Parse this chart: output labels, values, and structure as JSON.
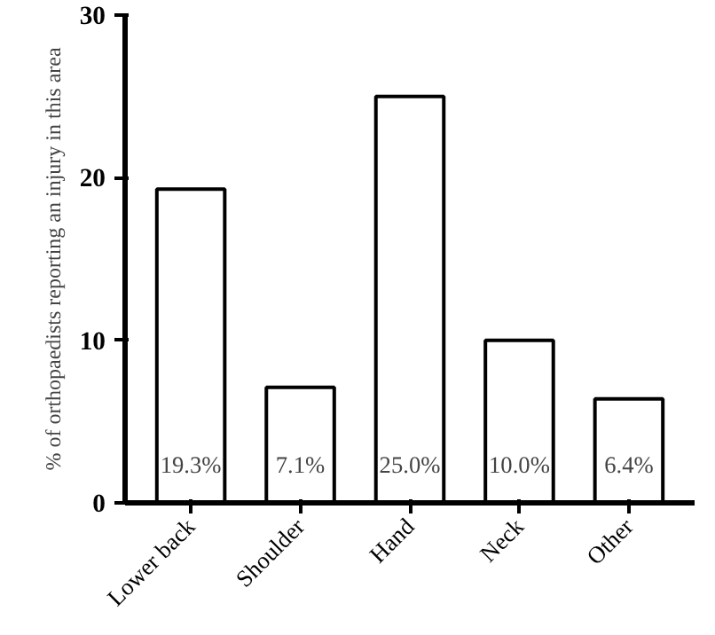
{
  "chart_data": {
    "type": "bar",
    "ylabel": "% of orthopaedists reporting an injury in this area",
    "categories": [
      "Lower back",
      "Shoulder",
      "Hand",
      "Neck",
      "Other"
    ],
    "values": [
      19.3,
      7.1,
      25.0,
      10.0,
      6.4
    ],
    "value_labels": [
      "19.3%",
      "7.1%",
      "25.0%",
      "10.0%",
      "6.4%"
    ],
    "color": "#ffffff",
    "ylim": [
      0,
      30
    ],
    "yticks": [
      0,
      10,
      20,
      30
    ],
    "grid": false
  }
}
